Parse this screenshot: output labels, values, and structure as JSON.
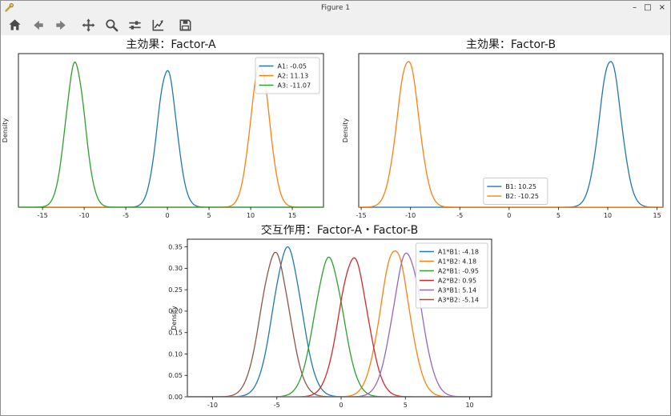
{
  "window": {
    "title": "Figure 1",
    "minimize": "–",
    "maximize": "□",
    "close": "×"
  },
  "toolbar": {
    "buttons": [
      {
        "name": "home",
        "icon": "home-icon"
      },
      {
        "name": "back",
        "icon": "back-arrow-icon"
      },
      {
        "name": "forward",
        "icon": "forward-arrow-icon"
      },
      {
        "name": "pan",
        "icon": "pan-move-icon"
      },
      {
        "name": "zoom",
        "icon": "magnifier-icon"
      },
      {
        "name": "configure-subplots",
        "icon": "sliders-icon"
      },
      {
        "name": "edit-axes",
        "icon": "line-chart-icon"
      },
      {
        "name": "save",
        "icon": "floppy-save-icon"
      }
    ]
  },
  "colors": {
    "blue": "#1f77b4",
    "orange": "#ff7f0e",
    "green": "#2ca02c",
    "red": "#d62728",
    "purple": "#9467bd",
    "brown": "#8c564b"
  },
  "chart_data": [
    {
      "type": "line",
      "kind": "kde-density",
      "title": "主効果：Factor-A",
      "xlabel": "",
      "ylabel": "Density",
      "xlim": [
        -17.9,
        18.75
      ],
      "ylim": [
        0,
        0.365
      ],
      "xticks": [
        -15,
        -10,
        -5,
        0,
        5,
        10,
        15
      ],
      "yticks": [],
      "grid": false,
      "legend": {
        "loc": "upper-right"
      },
      "series": [
        {
          "name": "A1: -0.05",
          "color": "#1f77b4",
          "mean": -0.05,
          "sigma": 1.15,
          "peak": 0.325
        },
        {
          "name": "A2: 11.13",
          "color": "#ff7f0e",
          "mean": 11.13,
          "sigma": 1.15,
          "peak": 0.338
        },
        {
          "name": "A3: -11.07",
          "color": "#2ca02c",
          "mean": -11.07,
          "sigma": 1.15,
          "peak": 0.342
        }
      ]
    },
    {
      "type": "line",
      "kind": "kde-density",
      "title": "主効果：Factor-B",
      "xlabel": "",
      "ylabel": "Density",
      "xlim": [
        -15.25,
        15.6
      ],
      "ylim": [
        0,
        0.365
      ],
      "xticks": [
        -15,
        -10,
        -5,
        0,
        5,
        10,
        15
      ],
      "yticks": [],
      "grid": false,
      "legend": {
        "loc": "custom",
        "fx": 0.41,
        "fy": 0.81
      },
      "series": [
        {
          "name": "B1: 10.25",
          "color": "#1f77b4",
          "mean": 10.25,
          "sigma": 1.1,
          "peak": 0.35
        },
        {
          "name": "B2: -10.25",
          "color": "#ff7f0e",
          "mean": -10.25,
          "sigma": 1.1,
          "peak": 0.35
        }
      ]
    },
    {
      "type": "line",
      "kind": "kde-density",
      "title": "交互作用：Factor-A・Factor-B",
      "xlabel": "",
      "ylabel": "Density",
      "xlim": [
        -11.96,
        11.71
      ],
      "ylim": [
        0,
        0.368
      ],
      "xticks": [
        -10,
        -5,
        0,
        5,
        10
      ],
      "yticks": [
        0,
        0.05,
        0.1,
        0.15,
        0.2,
        0.25,
        0.3,
        0.35
      ],
      "grid": false,
      "legend": {
        "loc": "upper-right"
      },
      "series": [
        {
          "name": "A1*B1: -4.18",
          "color": "#1f77b4",
          "mean": -4.18,
          "sigma": 1.1,
          "peak": 0.346
        },
        {
          "name": "A1*B2: 4.18",
          "color": "#ff7f0e",
          "mean": 4.18,
          "sigma": 1.1,
          "peak": 0.345
        },
        {
          "name": "A2*B1: -0.95",
          "color": "#2ca02c",
          "mean": -0.95,
          "sigma": 1.1,
          "peak": 0.322
        },
        {
          "name": "A2*B2: 0.95",
          "color": "#d62728",
          "mean": 0.95,
          "sigma": 1.1,
          "peak": 0.323
        },
        {
          "name": "A3*B1: 5.14",
          "color": "#9467bd",
          "mean": 5.14,
          "sigma": 1.1,
          "peak": 0.335
        },
        {
          "name": "A3*B2: -5.14",
          "color": "#8c564b",
          "mean": -5.14,
          "sigma": 1.1,
          "peak": 0.334
        }
      ]
    }
  ]
}
